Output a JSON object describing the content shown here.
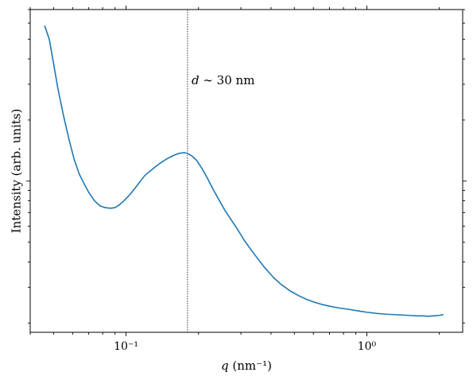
{
  "chart_data": {
    "type": "line",
    "title": "",
    "xlabel": "q (nm⁻¹)",
    "xlabel_var": "q",
    "xlabel_unit": " (nm⁻¹)",
    "ylabel": "Intensity (arb. units)",
    "xscale": "log",
    "yscale": "log",
    "xlim": [
      0.04,
      2.5
    ],
    "ylim": [
      0.18,
      7.0
    ],
    "grid": false,
    "x_ticks": [
      {
        "value": 0.1,
        "label": "10⁻¹"
      },
      {
        "value": 1.0,
        "label": "10⁰"
      }
    ],
    "series": [
      {
        "color": "#1f77b4",
        "x": [
          0.046,
          0.048,
          0.05,
          0.052,
          0.055,
          0.058,
          0.061,
          0.064,
          0.067,
          0.07,
          0.074,
          0.078,
          0.082,
          0.086,
          0.09,
          0.094,
          0.098,
          0.103,
          0.108,
          0.114,
          0.12,
          0.127,
          0.134,
          0.142,
          0.15,
          0.158,
          0.166,
          0.174,
          0.18,
          0.188,
          0.197,
          0.207,
          0.218,
          0.23,
          0.243,
          0.257,
          0.272,
          0.29,
          0.31,
          0.33,
          0.355,
          0.38,
          0.41,
          0.44,
          0.48,
          0.52,
          0.56,
          0.6,
          0.65,
          0.7,
          0.77,
          0.85,
          0.93,
          1.0,
          1.1,
          1.2,
          1.3,
          1.4,
          1.5,
          1.6,
          1.7,
          1.8,
          1.9,
          2.0,
          2.07
        ],
        "y": [
          5.8,
          5.0,
          3.8,
          2.9,
          2.1,
          1.6,
          1.27,
          1.08,
          0.97,
          0.88,
          0.8,
          0.755,
          0.74,
          0.735,
          0.74,
          0.765,
          0.8,
          0.85,
          0.91,
          0.99,
          1.07,
          1.13,
          1.19,
          1.25,
          1.3,
          1.34,
          1.37,
          1.38,
          1.37,
          1.33,
          1.26,
          1.15,
          1.03,
          0.91,
          0.81,
          0.72,
          0.65,
          0.58,
          0.51,
          0.46,
          0.41,
          0.37,
          0.335,
          0.31,
          0.288,
          0.273,
          0.262,
          0.254,
          0.247,
          0.242,
          0.237,
          0.233,
          0.229,
          0.226,
          0.223,
          0.221,
          0.22,
          0.219,
          0.218,
          0.217,
          0.217,
          0.216,
          0.217,
          0.218,
          0.22
        ]
      }
    ],
    "annotations": [
      {
        "type": "vline",
        "x": 0.18,
        "style": "dotted",
        "color": "#000000"
      },
      {
        "type": "text",
        "text": "d ∼ 30 nm",
        "var": "d",
        "rest": " ∼ 30 nm",
        "x": 0.19,
        "y": 3.0
      }
    ]
  }
}
